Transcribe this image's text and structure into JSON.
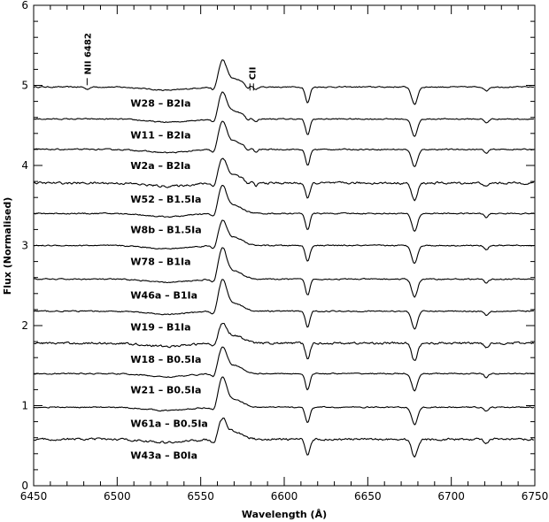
{
  "chart_data": {
    "type": "line",
    "title": "",
    "xlabel": "Wavelength (Å)",
    "ylabel": "Flux (Normalised)",
    "xlim": [
      6450,
      6750
    ],
    "ylim": [
      0,
      6
    ],
    "xticks": [
      6450,
      6500,
      6550,
      6600,
      6650,
      6700,
      6750
    ],
    "yticks": [
      0,
      1,
      2,
      3,
      4,
      5,
      6
    ],
    "grid": false,
    "line_color": "#000000",
    "annotations": [
      {
        "text": "NII 6482",
        "x": 6482
      },
      {
        "text": "CII",
        "x": 6580
      }
    ],
    "series": [
      {
        "name": "W28 – B2Ia",
        "offset": 4.98,
        "halpha": 0.3
      },
      {
        "name": "W11 – B2Ia",
        "offset": 4.58,
        "halpha": 0.3
      },
      {
        "name": "W2a – B2Ia",
        "offset": 4.2,
        "halpha": 0.32
      },
      {
        "name": "W52 – B1.5Ia",
        "offset": 3.78,
        "halpha": 0.28
      },
      {
        "name": "W8b – B1.5Ia",
        "offset": 3.4,
        "halpha": 0.32
      },
      {
        "name": "W78 – B1Ia",
        "offset": 3.0,
        "halpha": 0.28
      },
      {
        "name": "W46a – B1Ia",
        "offset": 2.58,
        "halpha": 0.36
      },
      {
        "name": "W19 – B1Ia",
        "offset": 2.18,
        "halpha": 0.36
      },
      {
        "name": "W18 – B0.5Ia",
        "offset": 1.78,
        "halpha": 0.22
      },
      {
        "name": "W21 – B0.5Ia",
        "offset": 1.4,
        "halpha": 0.3
      },
      {
        "name": "W61a – B0.5Ia",
        "offset": 0.98,
        "halpha": 0.34
      },
      {
        "name": "W43a – B0Ia",
        "offset": 0.58,
        "halpha": 0.22
      }
    ]
  }
}
